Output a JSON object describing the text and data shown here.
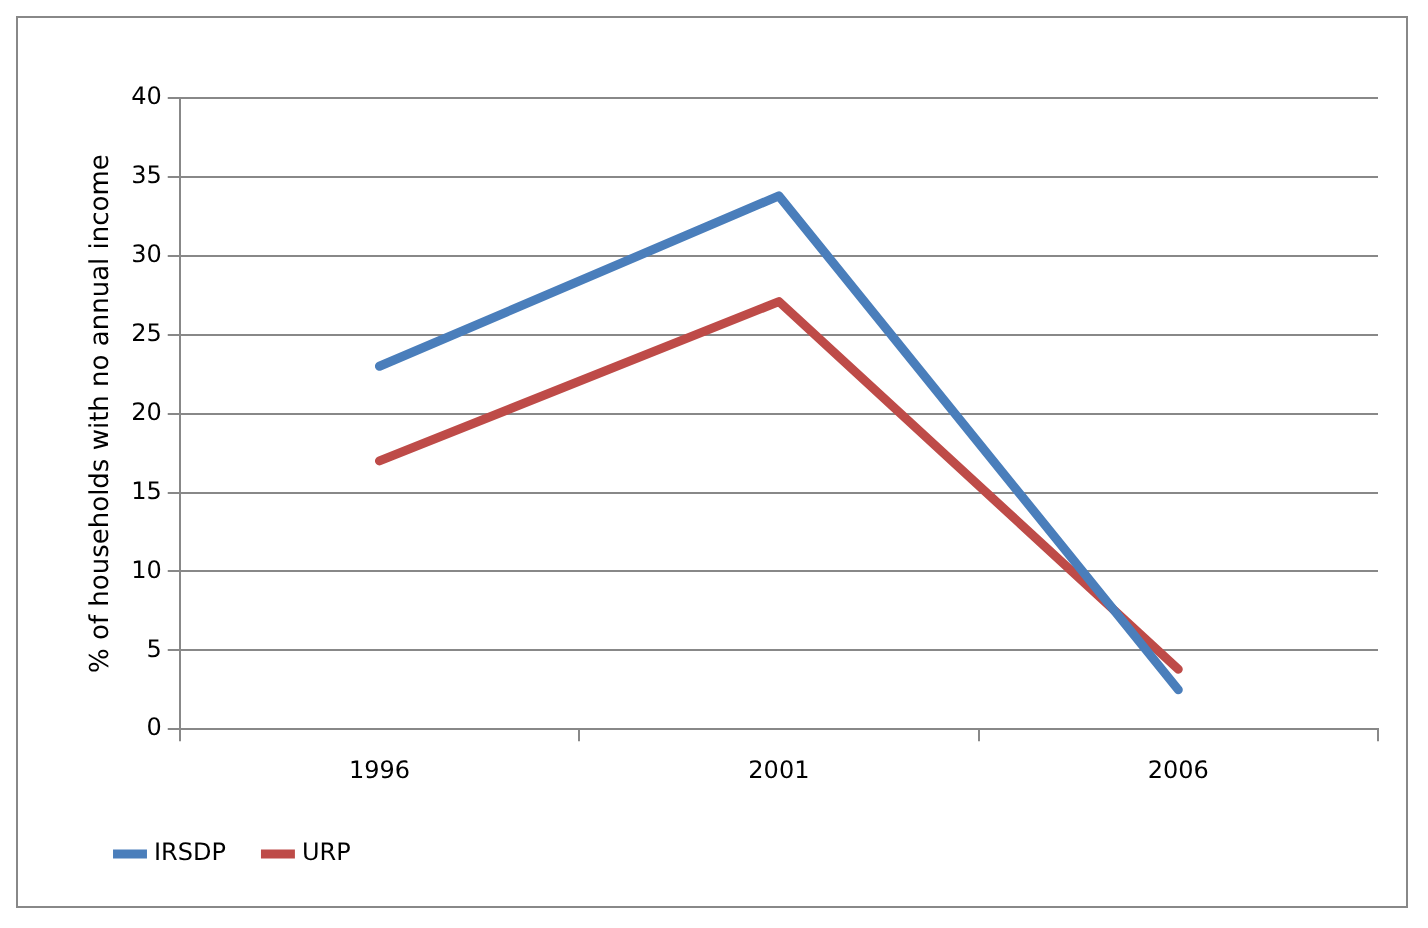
{
  "chart_data": {
    "type": "line",
    "ylabel": "% of households with no annual income",
    "categories": [
      "1996",
      "2001",
      "2006"
    ],
    "series": [
      {
        "name": "IRSDP",
        "color": "#4a7ebb",
        "values": [
          23,
          33.8,
          2.5
        ]
      },
      {
        "name": "URP",
        "color": "#be4b48",
        "values": [
          17,
          27.1,
          3.8
        ]
      }
    ],
    "ylim": [
      0,
      40
    ],
    "yticks": [
      0,
      5,
      10,
      15,
      20,
      25,
      30,
      35,
      40
    ],
    "grid": "y",
    "legend": "bottom left",
    "marker": "none",
    "line_style": "solid"
  }
}
